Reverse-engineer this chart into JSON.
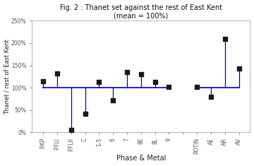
{
  "title_line1": "Fig. 2 : Thanet set against the rest of East Kent",
  "title_line2": "(mean = 100%)",
  "xlabel": "Phase & Metal",
  "ylabel": "Thanet / rest of East Kent",
  "categories": [
    "P.KP",
    "P.FLI",
    "P.FLII",
    "C",
    "1-5",
    "6",
    "7",
    "8E",
    "8L",
    "9",
    "",
    "POTIN",
    "AE",
    "AR",
    "AV"
  ],
  "values": [
    115,
    132,
    5,
    42,
    113,
    72,
    135,
    130,
    113,
    102,
    null,
    101,
    79,
    210,
    143
  ],
  "reference_line": 100,
  "ylim_min": 0,
  "ylim_max": 250,
  "yticks": [
    0,
    50,
    100,
    150,
    200,
    250
  ],
  "ytick_labels": [
    "0%",
    "50%",
    "100%",
    "150%",
    "200%",
    "250%"
  ],
  "line_segments": [
    [
      0,
      9
    ],
    [
      11,
      14
    ]
  ],
  "line_color": "#0000bb",
  "marker_color": "#1a1a1a",
  "background_color": "#ffffff",
  "title_fontsize": 7,
  "axis_fontsize": 6,
  "tick_fontsize": 5.5,
  "xlabel_fontsize": 7
}
